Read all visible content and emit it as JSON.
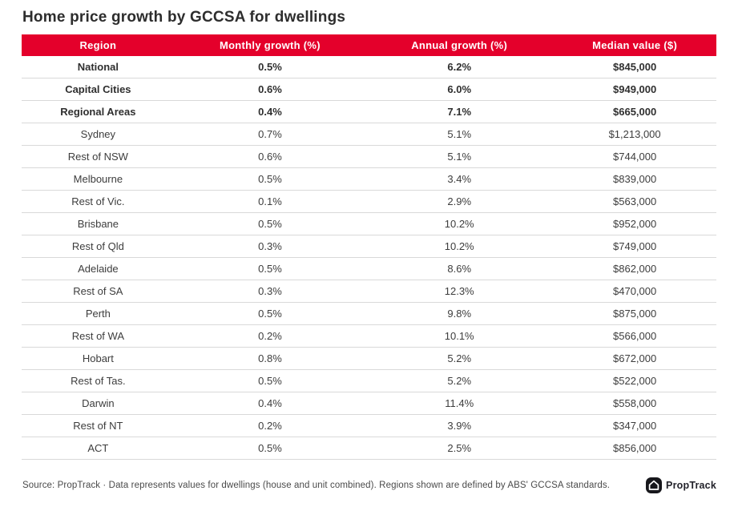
{
  "title": "Home price growth by GCCSA for dwellings",
  "chart_data": {
    "type": "table",
    "title": "Home price growth by GCCSA for dwellings",
    "columns": [
      "Region",
      "Monthly growth (%)",
      "Annual growth (%)",
      "Median value ($)"
    ],
    "rows": [
      {
        "region": "National",
        "monthly": "0.5%",
        "annual": "6.2%",
        "median": "$845,000",
        "bold": true
      },
      {
        "region": "Capital Cities",
        "monthly": "0.6%",
        "annual": "6.0%",
        "median": "$949,000",
        "bold": true
      },
      {
        "region": "Regional Areas",
        "monthly": "0.4%",
        "annual": "7.1%",
        "median": "$665,000",
        "bold": true
      },
      {
        "region": "Sydney",
        "monthly": "0.7%",
        "annual": "5.1%",
        "median": "$1,213,000",
        "bold": false
      },
      {
        "region": "Rest of NSW",
        "monthly": "0.6%",
        "annual": "5.1%",
        "median": "$744,000",
        "bold": false
      },
      {
        "region": "Melbourne",
        "monthly": "0.5%",
        "annual": "3.4%",
        "median": "$839,000",
        "bold": false
      },
      {
        "region": "Rest of Vic.",
        "monthly": "0.1%",
        "annual": "2.9%",
        "median": "$563,000",
        "bold": false
      },
      {
        "region": "Brisbane",
        "monthly": "0.5%",
        "annual": "10.2%",
        "median": "$952,000",
        "bold": false
      },
      {
        "region": "Rest of Qld",
        "monthly": "0.3%",
        "annual": "10.2%",
        "median": "$749,000",
        "bold": false
      },
      {
        "region": "Adelaide",
        "monthly": "0.5%",
        "annual": "8.6%",
        "median": "$862,000",
        "bold": false
      },
      {
        "region": "Rest of SA",
        "monthly": "0.3%",
        "annual": "12.3%",
        "median": "$470,000",
        "bold": false
      },
      {
        "region": "Perth",
        "monthly": "0.5%",
        "annual": "9.8%",
        "median": "$875,000",
        "bold": false
      },
      {
        "region": "Rest of WA",
        "monthly": "0.2%",
        "annual": "10.1%",
        "median": "$566,000",
        "bold": false
      },
      {
        "region": "Hobart",
        "monthly": "0.8%",
        "annual": "5.2%",
        "median": "$672,000",
        "bold": false
      },
      {
        "region": "Rest of Tas.",
        "monthly": "0.5%",
        "annual": "5.2%",
        "median": "$522,000",
        "bold": false
      },
      {
        "region": "Darwin",
        "monthly": "0.4%",
        "annual": "11.4%",
        "median": "$558,000",
        "bold": false
      },
      {
        "region": "Rest of NT",
        "monthly": "0.2%",
        "annual": "3.9%",
        "median": "$347,000",
        "bold": false
      },
      {
        "region": "ACT",
        "monthly": "0.5%",
        "annual": "2.5%",
        "median": "$856,000",
        "bold": false
      }
    ]
  },
  "footer": {
    "source_text": "Source: PropTrack · Data represents values for dwellings (house and unit combined). Regions shown are defined by ABS' GCCSA standards.",
    "logo_text": "PropTrack"
  },
  "colors": {
    "header_bg": "#e4002b",
    "header_text": "#ffffff",
    "row_divider": "#d9d9d9",
    "title_text": "#2d2d2d",
    "cell_text": "#3d3d3d",
    "logo_bg": "#17171c"
  }
}
